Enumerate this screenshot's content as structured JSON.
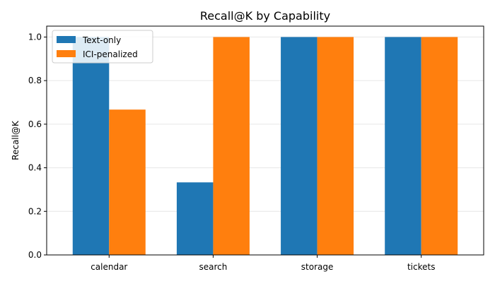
{
  "chart_data": {
    "type": "bar",
    "title": "Recall@K by Capability",
    "xlabel": "",
    "ylabel": "Recall@K",
    "categories": [
      "calendar",
      "search",
      "storage",
      "tickets"
    ],
    "series": [
      {
        "name": "Text-only",
        "values": [
          1.0,
          0.333,
          1.0,
          1.0
        ],
        "color": "#1f77b4"
      },
      {
        "name": "ICI-penalized",
        "values": [
          0.667,
          1.0,
          1.0,
          1.0
        ],
        "color": "#ff7f0e"
      }
    ],
    "ylim": [
      0,
      1.05
    ],
    "yticks": [
      "0.0",
      "0.2",
      "0.4",
      "0.6",
      "0.8",
      "1.0"
    ],
    "grid": "y",
    "legend_position": "top-left"
  }
}
